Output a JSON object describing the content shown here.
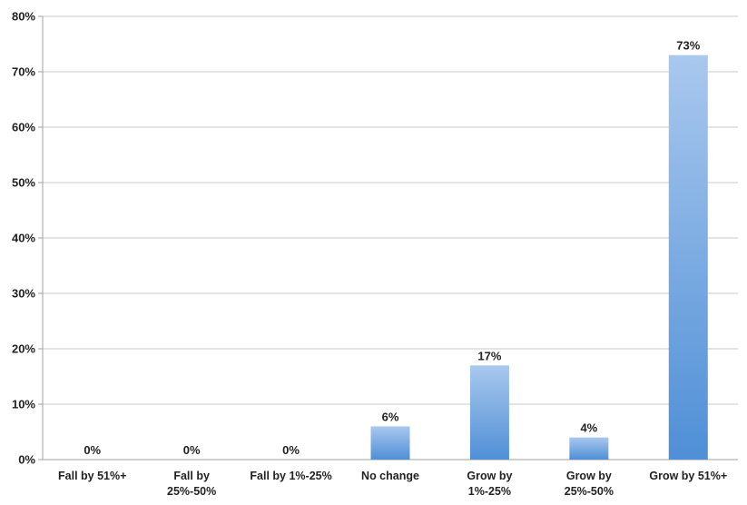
{
  "chart_data": {
    "type": "bar",
    "title": "",
    "xlabel": "",
    "ylabel": "",
    "categories": [
      [
        "Fall by 51%+"
      ],
      [
        "Fall by",
        "25%-50%"
      ],
      [
        "Fall by 1%-25%"
      ],
      [
        "No change"
      ],
      [
        "Grow by",
        "1%-25%"
      ],
      [
        "Grow by",
        "25%-50%"
      ],
      [
        "Grow by 51%+"
      ]
    ],
    "values": [
      0,
      0,
      0,
      6,
      17,
      4,
      73
    ],
    "data_labels": [
      "0%",
      "0%",
      "0%",
      "6%",
      "17%",
      "4%",
      "73%"
    ],
    "y_ticks": [
      "0%",
      "10%",
      "20%",
      "30%",
      "40%",
      "50%",
      "60%",
      "70%",
      "80%"
    ],
    "ylim": [
      0,
      80
    ],
    "grid": true,
    "legend": "none",
    "colors": {
      "bar_top": "#a9c8ee",
      "bar_bottom": "#4f8fd6",
      "gridline": "#c9c9c9",
      "axis": "#a0a0a0"
    }
  }
}
